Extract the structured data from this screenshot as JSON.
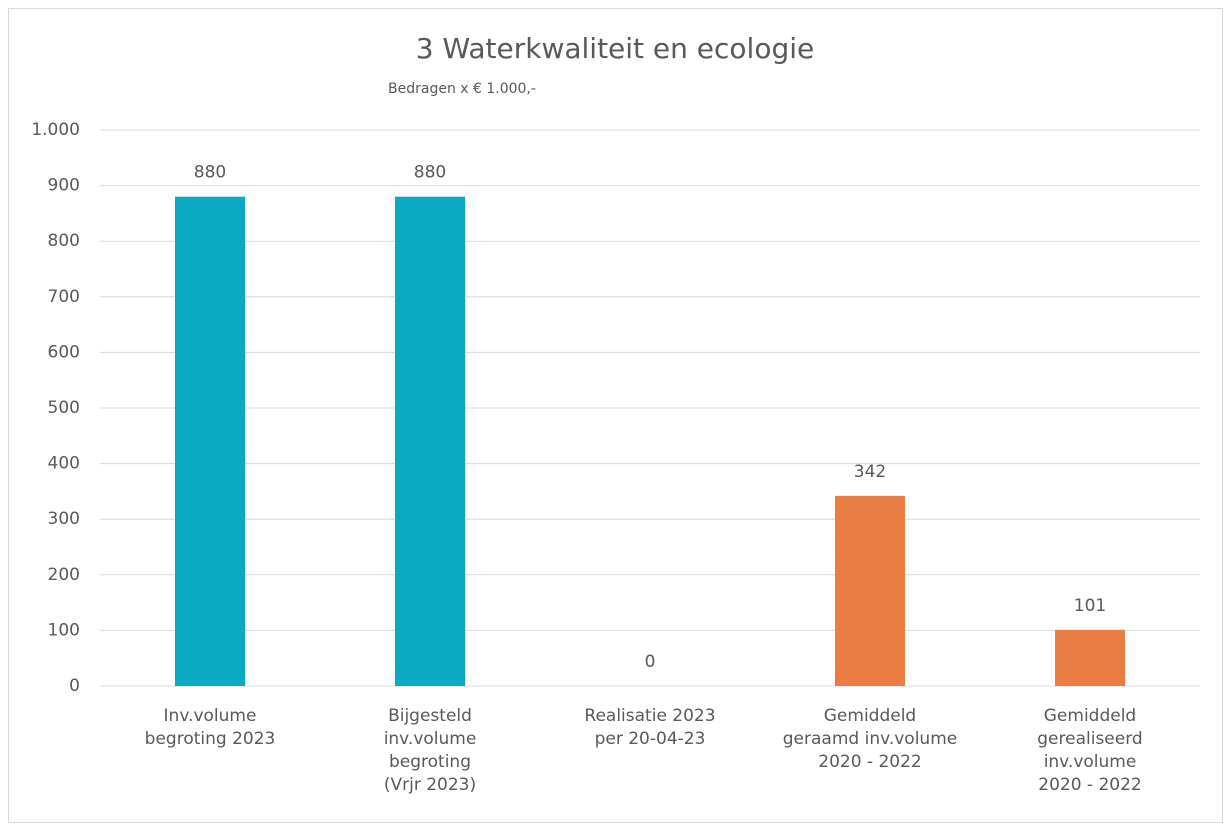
{
  "chart_data": {
    "type": "bar",
    "title": "3 Waterkwaliteit en ecologie",
    "subtitle": "Bedragen x € 1.000,-",
    "categories": [
      "Inv.volume\nbegroting 2023",
      "Bijgesteld\ninv.volume\nbegroting\n(Vrjr 2023)",
      "Realisatie 2023\nper 20-04-23",
      "Gemiddeld\ngeraamd inv.volume\n2020 - 2022",
      "Gemiddeld\ngerealiseerd\ninv.volume\n2020 - 2022"
    ],
    "values": [
      880,
      880,
      0,
      342,
      101
    ],
    "colors": [
      "#0aa9c4",
      "#0aa9c4",
      "#0aa9c4",
      "#ea7d43",
      "#ea7d43"
    ],
    "ylim": [
      0,
      1000
    ],
    "yticks": [
      0,
      100,
      200,
      300,
      400,
      500,
      600,
      700,
      800,
      900,
      {
        "value": 1000,
        "label": "1.000"
      }
    ],
    "grid": true
  }
}
